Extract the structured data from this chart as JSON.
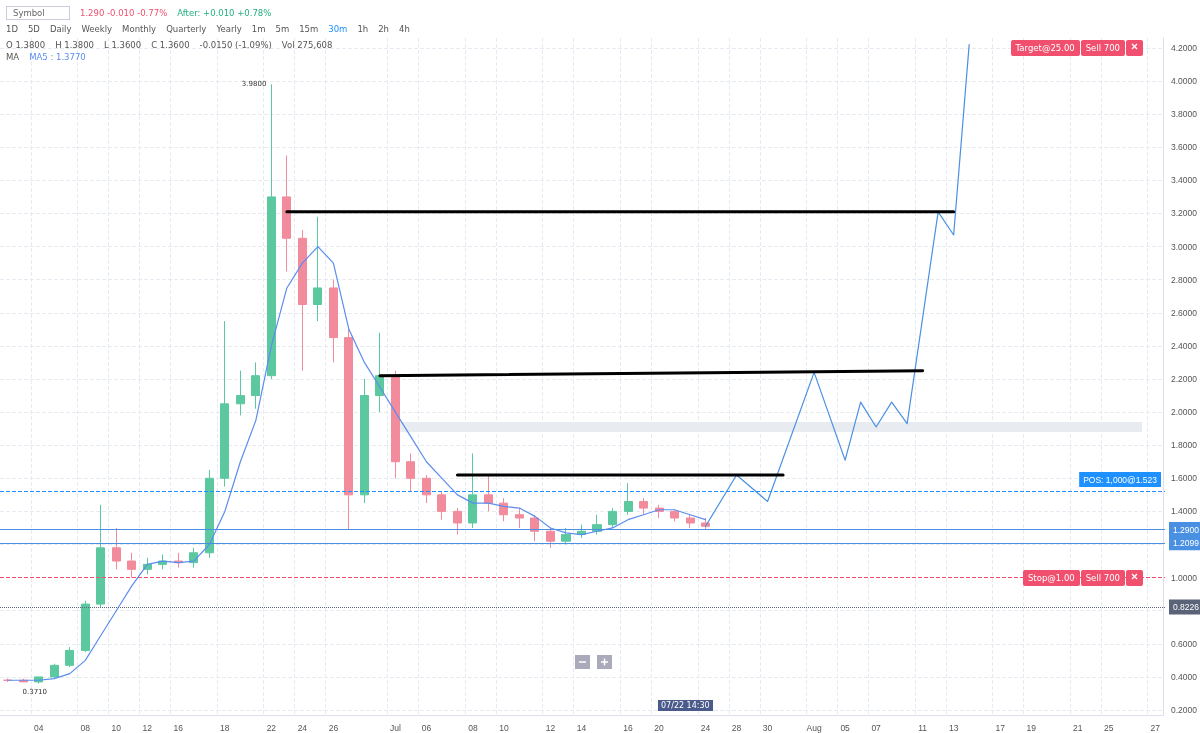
{
  "chart_data": {
    "type": "candlestick",
    "categories": [
      null,
      null,
      "04",
      null,
      null,
      "08",
      null,
      "10",
      null,
      "12",
      null,
      "16",
      null,
      null,
      "18",
      null,
      null,
      "22",
      null,
      "24",
      null,
      "26",
      null,
      null,
      null,
      "Jul",
      null,
      "06",
      null,
      null,
      "08",
      null,
      "10",
      null,
      null,
      "12",
      null,
      "14",
      null,
      null,
      "16",
      null,
      "20",
      null,
      null,
      "24",
      null,
      "28",
      null,
      "30",
      null,
      null,
      "Aug",
      null,
      "05",
      null,
      "07",
      null,
      null,
      "11",
      null,
      "13",
      null,
      null,
      "17",
      null,
      "19",
      null,
      null,
      "21",
      null,
      "25",
      null,
      null,
      "27"
    ],
    "series": [
      {
        "type": "candlestick",
        "ohlc": [
          [
            0.38,
            0.39,
            0.37,
            0.38
          ],
          [
            0.38,
            0.39,
            0.37,
            0.37
          ],
          [
            0.37,
            0.4,
            0.36,
            0.4
          ],
          [
            0.4,
            0.48,
            0.39,
            0.47
          ],
          [
            0.47,
            0.58,
            0.46,
            0.56
          ],
          [
            0.56,
            0.86,
            0.55,
            0.84
          ],
          [
            0.84,
            1.44,
            0.82,
            1.18
          ],
          [
            1.18,
            1.3,
            1.05,
            1.1
          ],
          [
            1.1,
            1.15,
            1.0,
            1.05
          ],
          [
            1.05,
            1.12,
            1.02,
            1.08
          ],
          [
            1.08,
            1.14,
            1.05,
            1.1
          ],
          [
            1.1,
            1.15,
            1.06,
            1.09
          ],
          [
            1.09,
            1.18,
            1.06,
            1.15
          ],
          [
            1.15,
            1.65,
            1.12,
            1.6
          ],
          [
            1.6,
            2.55,
            1.55,
            2.05
          ],
          [
            2.05,
            2.25,
            1.98,
            2.1
          ],
          [
            2.1,
            2.3,
            2.02,
            2.22
          ],
          [
            2.22,
            3.98,
            2.2,
            3.3
          ],
          [
            3.3,
            3.55,
            2.85,
            3.05
          ],
          [
            3.05,
            3.1,
            2.25,
            2.65
          ],
          [
            2.65,
            3.18,
            2.55,
            2.75
          ],
          [
            2.75,
            2.8,
            2.3,
            2.45
          ],
          [
            2.45,
            2.5,
            1.29,
            1.5
          ],
          [
            1.5,
            2.2,
            1.45,
            2.1
          ],
          [
            2.1,
            2.48,
            2.0,
            2.22
          ],
          [
            2.22,
            2.25,
            1.6,
            1.7
          ],
          [
            1.7,
            1.75,
            1.52,
            1.6
          ],
          [
            1.6,
            1.62,
            1.45,
            1.5
          ],
          [
            1.5,
            1.52,
            1.35,
            1.4
          ],
          [
            1.4,
            1.42,
            1.26,
            1.33
          ],
          [
            1.33,
            1.75,
            1.3,
            1.5
          ],
          [
            1.5,
            1.62,
            1.4,
            1.45
          ],
          [
            1.45,
            1.48,
            1.34,
            1.38
          ],
          [
            1.38,
            1.42,
            1.3,
            1.36
          ],
          [
            1.36,
            1.38,
            1.22,
            1.28
          ],
          [
            1.28,
            1.3,
            1.18,
            1.22
          ],
          [
            1.22,
            1.3,
            1.2,
            1.26
          ],
          [
            1.26,
            1.32,
            1.24,
            1.28
          ],
          [
            1.28,
            1.38,
            1.26,
            1.32
          ],
          [
            1.32,
            1.42,
            1.3,
            1.4
          ],
          [
            1.4,
            1.57,
            1.38,
            1.46
          ],
          [
            1.46,
            1.48,
            1.38,
            1.42
          ],
          [
            1.42,
            1.44,
            1.36,
            1.4
          ],
          [
            1.4,
            1.41,
            1.34,
            1.36
          ],
          [
            1.36,
            1.38,
            1.3,
            1.33
          ],
          [
            1.33,
            1.36,
            1.29,
            1.31
          ],
          null,
          null,
          null,
          null,
          null,
          null,
          null,
          null,
          null,
          null,
          null,
          null,
          null,
          null,
          null,
          null,
          null,
          null,
          null,
          null,
          null,
          null,
          null,
          null,
          null,
          null,
          null,
          null,
          null
        ],
        "colors": [
          "#f28b9b",
          "#f28b9b",
          "#5cc8a0",
          "#5cc8a0",
          "#5cc8a0",
          "#5cc8a0",
          "#5cc8a0",
          "#f28b9b",
          "#f28b9b",
          "#5cc8a0",
          "#5cc8a0",
          "#f28b9b",
          "#5cc8a0",
          "#5cc8a0",
          "#5cc8a0",
          "#5cc8a0",
          "#5cc8a0",
          "#5cc8a0",
          "#f28b9b",
          "#f28b9b",
          "#5cc8a0",
          "#f28b9b",
          "#f28b9b",
          "#5cc8a0",
          "#5cc8a0",
          "#f28b9b",
          "#f28b9b",
          "#f28b9b",
          "#f28b9b",
          "#f28b9b",
          "#5cc8a0",
          "#f28b9b",
          "#f28b9b",
          "#f28b9b",
          "#f28b9b",
          "#f28b9b",
          "#5cc8a0",
          "#5cc8a0",
          "#5cc8a0",
          "#5cc8a0",
          "#5cc8a0",
          "#f28b9b",
          "#f28b9b",
          "#f28b9b",
          "#f28b9b",
          "#f28b9b",
          null,
          null,
          null,
          null,
          null,
          null,
          null,
          null,
          null,
          null,
          null,
          null,
          null,
          null,
          null,
          null,
          null,
          null,
          null,
          null,
          null,
          null,
          null,
          null,
          null,
          null,
          null,
          null,
          null
        ]
      },
      {
        "type": "line",
        "color": "#5b8def",
        "values": [
          0.38,
          0.38,
          0.38,
          0.39,
          0.42,
          0.5,
          0.65,
          0.8,
          0.95,
          1.08,
          1.1,
          1.09,
          1.1,
          1.2,
          1.4,
          1.7,
          1.95,
          2.4,
          2.75,
          2.9,
          3.0,
          2.9,
          2.5,
          2.3,
          2.15,
          2.0,
          1.85,
          1.7,
          1.6,
          1.5,
          1.45,
          1.45,
          1.43,
          1.42,
          1.37,
          1.3,
          1.27,
          1.26,
          1.28,
          1.3,
          1.35,
          1.38,
          1.41,
          1.41,
          1.38,
          1.35,
          null,
          null,
          null,
          null,
          null,
          null,
          null,
          null,
          null,
          null,
          null,
          null,
          null,
          null,
          null,
          null,
          null,
          null,
          null,
          null,
          null,
          null,
          null,
          null,
          null,
          null,
          null,
          null,
          null
        ]
      },
      {
        "type": "line",
        "color": "#4a90e2",
        "values": [
          null,
          null,
          null,
          null,
          null,
          null,
          null,
          null,
          null,
          null,
          null,
          null,
          null,
          null,
          null,
          null,
          null,
          null,
          null,
          null,
          null,
          null,
          null,
          null,
          null,
          null,
          null,
          null,
          null,
          null,
          null,
          null,
          null,
          null,
          null,
          null,
          null,
          null,
          null,
          null,
          null,
          null,
          null,
          null,
          null,
          1.31,
          null,
          1.62,
          null,
          1.46,
          null,
          null,
          2.24,
          null,
          1.71,
          2.06,
          1.91,
          2.06,
          1.93,
          null,
          3.21,
          3.07,
          4.22,
          null,
          null,
          null,
          null,
          null,
          null,
          null,
          null,
          null,
          null,
          null,
          null
        ]
      },
      {
        "type": "line",
        "color": "#000000",
        "values": [
          null,
          null,
          null,
          null,
          null,
          null,
          null,
          null,
          null,
          null,
          null,
          null,
          null,
          null,
          null,
          null,
          null,
          null,
          3.21,
          null,
          null,
          null,
          null,
          null,
          null,
          null,
          null,
          null,
          null,
          null,
          null,
          null,
          null,
          null,
          null,
          null,
          null,
          null,
          null,
          null,
          null,
          null,
          null,
          null,
          null,
          null,
          null,
          null,
          null,
          null,
          null,
          null,
          null,
          null,
          null,
          null,
          null,
          null,
          null,
          null,
          null,
          3.21,
          null,
          null,
          null,
          null,
          null,
          null,
          null,
          null,
          null,
          null,
          null,
          null,
          null
        ]
      },
      {
        "type": "line",
        "color": "#000000",
        "values": [
          null,
          null,
          null,
          null,
          null,
          null,
          null,
          null,
          null,
          null,
          null,
          null,
          null,
          null,
          null,
          null,
          null,
          null,
          null,
          null,
          null,
          null,
          null,
          null,
          2.22,
          null,
          null,
          null,
          null,
          null,
          null,
          null,
          null,
          null,
          null,
          null,
          null,
          null,
          null,
          null,
          null,
          null,
          null,
          null,
          null,
          null,
          null,
          null,
          null,
          null,
          null,
          null,
          null,
          null,
          null,
          null,
          null,
          null,
          null,
          2.25,
          null,
          null,
          null,
          null,
          null,
          null,
          null,
          null,
          null,
          null,
          null,
          null,
          null,
          null,
          null
        ]
      },
      {
        "type": "line",
        "color": "#000000",
        "values": [
          null,
          null,
          null,
          null,
          null,
          null,
          null,
          null,
          null,
          null,
          null,
          null,
          null,
          null,
          null,
          null,
          null,
          null,
          null,
          null,
          null,
          null,
          null,
          null,
          null,
          null,
          null,
          null,
          null,
          1.62,
          null,
          null,
          null,
          null,
          null,
          null,
          null,
          null,
          null,
          null,
          null,
          null,
          null,
          null,
          null,
          null,
          null,
          null,
          null,
          null,
          1.62,
          null,
          null,
          null,
          null,
          null,
          null,
          null,
          null,
          null,
          null,
          null,
          null,
          null,
          null,
          null,
          null,
          null,
          null,
          null,
          null,
          null,
          null,
          null,
          null
        ]
      }
    ],
    "ylim": [
      0.17,
      4.26
    ],
    "yticks": [
      {
        "value": 0.2,
        "label": "0.2000"
      },
      {
        "value": 0.4,
        "label": "0.4000"
      },
      {
        "value": 0.6,
        "label": "0.6000"
      },
      {
        "value": 0.8,
        "label": null
      },
      {
        "value": 1.0,
        "label": "1.0000"
      },
      {
        "value": 1.2,
        "label": null
      },
      {
        "value": 1.4,
        "label": "1.4000"
      },
      {
        "value": 1.6,
        "label": "1.6000"
      },
      {
        "value": 1.8,
        "label": "1.8000"
      },
      {
        "value": 2.0,
        "label": "2.0000"
      },
      {
        "value": 2.2,
        "label": "2.2000"
      },
      {
        "value": 2.4,
        "label": "2.4000"
      },
      {
        "value": 2.6,
        "label": "2.6000"
      },
      {
        "value": 2.8,
        "label": "2.8000"
      },
      {
        "value": 3.0,
        "label": "3.0000"
      },
      {
        "value": 3.2,
        "label": "3.2000"
      },
      {
        "value": 3.4,
        "label": "3.4000"
      },
      {
        "value": 3.6,
        "label": "3.6000"
      },
      {
        "value": 3.8,
        "label": "3.8000"
      },
      {
        "value": 4.0,
        "label": "4.0000"
      },
      {
        "value": 4.2,
        "label": "4.2000"
      }
    ],
    "grid": true,
    "ref_lines": [
      {
        "axis": "y",
        "value": 1.29,
        "label": "1.2900",
        "color": "#4a90e2",
        "line_style": "solid"
      },
      {
        "axis": "y",
        "value": 1.2099,
        "label": "1.2099",
        "color": "#4a90e2",
        "line_style": "solid"
      },
      {
        "axis": "y",
        "value": 0.8226,
        "label": "0.8226",
        "color": "#5a6378",
        "line_style": "dotted"
      },
      {
        "axis": "y",
        "value": 1.523,
        "label": "POS: 1,000@1.523",
        "color": "#1e90ff",
        "line_style": "dashed"
      },
      {
        "axis": "y",
        "value": 1.0,
        "color": "#f0506e",
        "line_style": "dashed"
      }
    ],
    "bands": [
      {
        "axis": "y",
        "from": 1.88,
        "to": 1.94,
        "color": "#e8ebef"
      }
    ],
    "annotations": [
      "Symbol",
      "1.290 -0.010 -0.77%",
      "After: +0.010 +0.78%",
      "1D",
      "5D",
      "Daily",
      "Weekly",
      "Monthly",
      "Quarterly",
      "Yearly",
      "1m",
      "5m",
      "15m",
      "30m",
      "1h",
      "2h",
      "4h",
      "O 1.3800",
      "H 1.3800",
      "L 1.3600",
      "C 1.3600",
      "-0.0150 (-1.09%)",
      "Vol 275,608",
      "MA",
      "MA5 : 1.3770",
      "07/22 14:30",
      "Target@25.00",
      "Sell 700",
      "Stop@1.00",
      "Sell 700",
      {
        "text": "3.9800",
        "x": "22",
        "y": 3.98
      },
      {
        "text": "0.3710",
        "x": "04",
        "y": 0.371
      }
    ]
  }
}
